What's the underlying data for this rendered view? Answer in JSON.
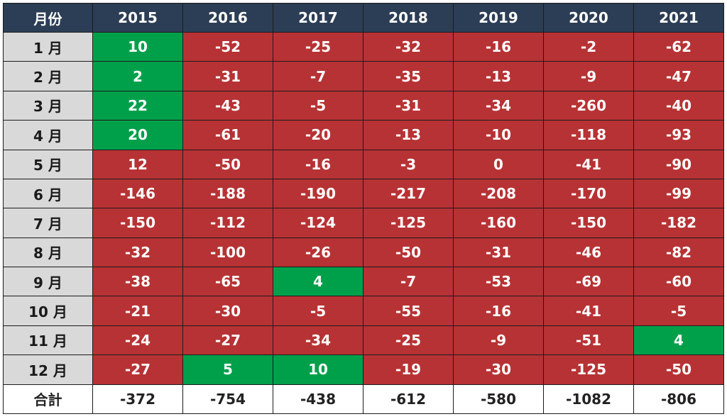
{
  "chart_data": {
    "type": "table",
    "row_header_label": "月份",
    "years": [
      "2015",
      "2016",
      "2017",
      "2018",
      "2019",
      "2020",
      "2021"
    ],
    "months": [
      "1 月",
      "2 月",
      "3 月",
      "4 月",
      "5 月",
      "6 月",
      "7 月",
      "8 月",
      "9 月",
      "10 月",
      "11 月",
      "12 月"
    ],
    "values": [
      [
        10,
        -52,
        -25,
        -32,
        -16,
        -2,
        -62
      ],
      [
        2,
        -31,
        -7,
        -35,
        -13,
        -9,
        -47
      ],
      [
        22,
        -43,
        -5,
        -31,
        -34,
        -260,
        -40
      ],
      [
        20,
        -61,
        -20,
        -13,
        -10,
        -118,
        -93
      ],
      [
        12,
        -50,
        -16,
        -3,
        0,
        -41,
        -90
      ],
      [
        -146,
        -188,
        -190,
        -217,
        -208,
        -170,
        -99
      ],
      [
        -150,
        -112,
        -124,
        -125,
        -160,
        -150,
        -182
      ],
      [
        -32,
        -100,
        -26,
        -50,
        -31,
        -46,
        -82
      ],
      [
        -38,
        -65,
        4,
        -7,
        -53,
        -69,
        -60
      ],
      [
        -21,
        -30,
        -5,
        -55,
        -16,
        -41,
        -5
      ],
      [
        -24,
        -27,
        -34,
        -25,
        -9,
        -51,
        4
      ],
      [
        -27,
        5,
        10,
        -19,
        -30,
        -125,
        -50
      ]
    ],
    "highlighted_cells": [
      [
        0,
        0
      ],
      [
        1,
        0
      ],
      [
        2,
        0
      ],
      [
        3,
        0
      ],
      [
        8,
        2
      ],
      [
        10,
        6
      ],
      [
        11,
        1
      ],
      [
        11,
        2
      ]
    ],
    "total_label": "合計",
    "totals": [
      -372,
      -754,
      -438,
      -612,
      -580,
      -1082,
      -806
    ],
    "colors": {
      "header": "#2c3e55",
      "month": "#d9d9d9",
      "highlight": "#00a04b",
      "default": "#b73234",
      "total": "#ffffff"
    }
  }
}
